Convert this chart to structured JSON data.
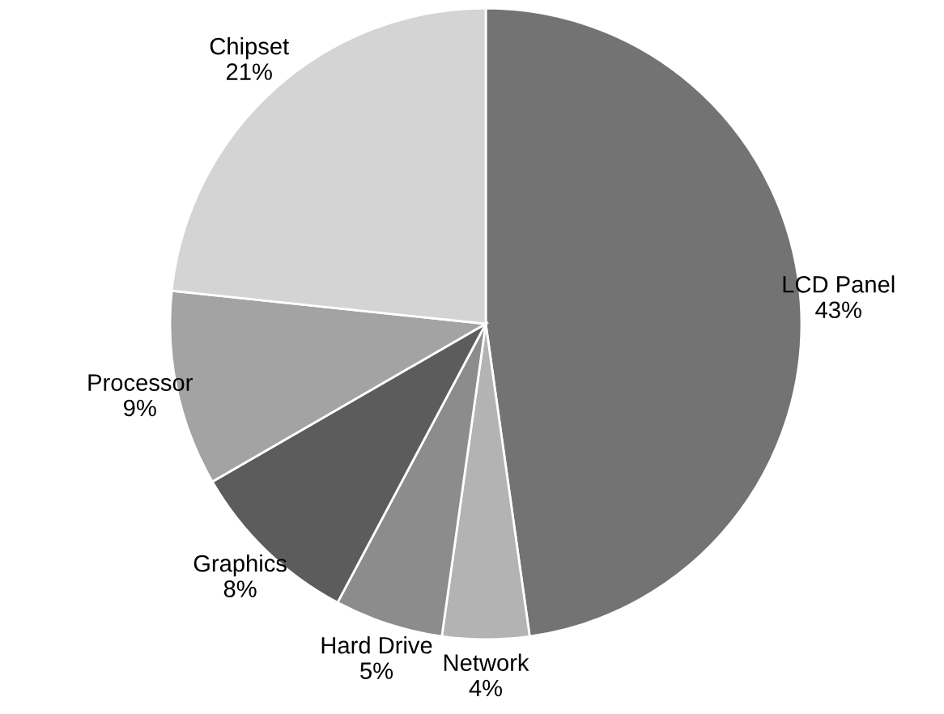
{
  "chart_data": {
    "type": "pie",
    "categories": [
      "LCD Panel",
      "Network",
      "Hard Drive",
      "Graphics",
      "Processor",
      "Chipset"
    ],
    "values": [
      43,
      4,
      5,
      8,
      9,
      21
    ],
    "value_labels": [
      "43%",
      "4%",
      "5%",
      "8%",
      "9%",
      "21%"
    ],
    "colors": [
      "#737373",
      "#b3b3b3",
      "#8c8c8c",
      "#5c5c5c",
      "#a3a3a3",
      "#d4d4d4"
    ],
    "legend": false
  }
}
